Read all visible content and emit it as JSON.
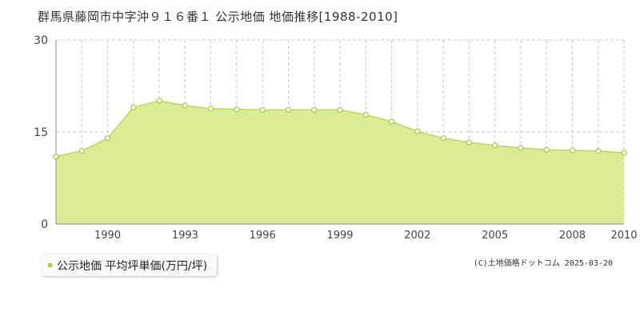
{
  "title": "群馬県藤岡市中字沖９１６番１ 公示地価 地価推移[1988-2010]",
  "legend_label": "公示地価 平均坪単価(万円/坪)",
  "credit": "(C)土地価格ドットコム 2025-03-20",
  "colors": {
    "fill": "#dcec94",
    "line": "#b8d95a",
    "point_stroke": "#a6c93a",
    "grid": "#c8c8c8",
    "axis": "#888888",
    "legend_marker": "#a8cf2e"
  },
  "chart_data": {
    "type": "area",
    "x": [
      1988,
      1989,
      1990,
      1991,
      1992,
      1993,
      1994,
      1995,
      1996,
      1997,
      1998,
      1999,
      2000,
      2001,
      2002,
      2003,
      2004,
      2005,
      2006,
      2007,
      2008,
      2009,
      2010
    ],
    "values": [
      11.0,
      11.9,
      14.0,
      19.0,
      20.1,
      19.3,
      18.8,
      18.7,
      18.6,
      18.6,
      18.6,
      18.6,
      17.8,
      16.7,
      15.1,
      14.0,
      13.3,
      12.8,
      12.4,
      12.1,
      12.0,
      11.9,
      11.6
    ],
    "xlim": [
      1988,
      2010
    ],
    "ylim": [
      0,
      30
    ],
    "y_ticks": [
      0,
      15,
      30
    ],
    "y_tick_labels": [
      "0",
      "15",
      "30"
    ],
    "x_ticks": [
      1990,
      1993,
      1996,
      1999,
      2002,
      2005,
      2008,
      2010
    ],
    "x_tick_labels": [
      "1990",
      "1993",
      "1996",
      "1999",
      "2002",
      "2005",
      "2008",
      "2010"
    ],
    "xlabel": "",
    "ylabel": "",
    "grid": true,
    "legend_position": "bottom-left"
  }
}
